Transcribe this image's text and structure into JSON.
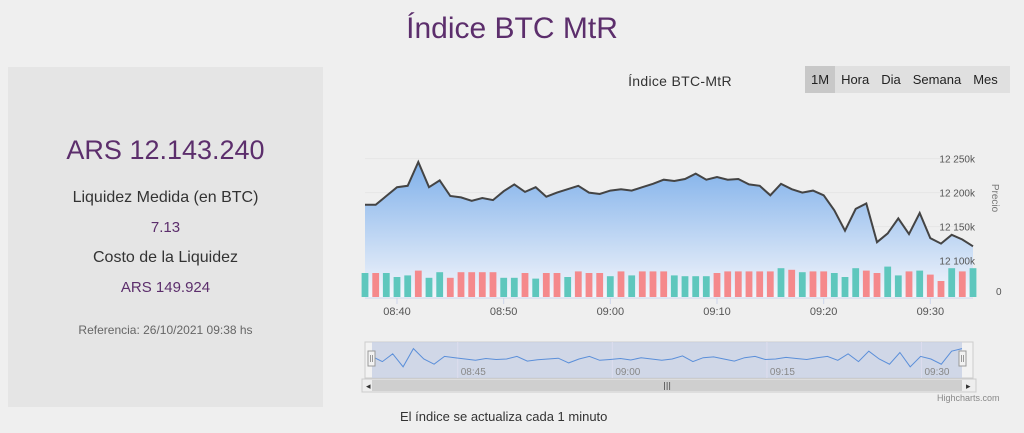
{
  "page": {
    "title": "Índice BTC MtR",
    "update_note": "El índice se actualiza cada 1 minuto",
    "credits": "Highcharts.com"
  },
  "summary": {
    "main_value": "ARS 12.143.240",
    "liquidity_label": "Liquidez Medida (en BTC)",
    "liquidity_value": "7.13",
    "cost_label": "Costo de la Liquidez",
    "cost_value": "ARS 149.924",
    "reference": "Referencia: 26/10/2021 09:38 hs"
  },
  "range_selector": {
    "buttons": [
      {
        "label": "1M",
        "active": true
      },
      {
        "label": "Hora",
        "active": false
      },
      {
        "label": "Dia",
        "active": false
      },
      {
        "label": "Semana",
        "active": false
      },
      {
        "label": "Mes",
        "active": false
      }
    ]
  },
  "colors": {
    "line": "#444444",
    "area_top": "#7fb0ea",
    "area_bottom": "#f4f6fb",
    "vol_up": "#5ec7bd",
    "vol_down": "#f5898c",
    "navigator_line": "#5b8fd9",
    "navigator_fill": "#c7cfe4",
    "title_accent": "#5c2e6c"
  },
  "chart_data": {
    "type": "line",
    "title": "Índice BTC-MtR",
    "x_ticks": [
      "08:40",
      "08:50",
      "09:00",
      "09:10",
      "09:20",
      "09:30"
    ],
    "x_tick_minutes": [
      520,
      530,
      540,
      550,
      560,
      570
    ],
    "x_range_minutes": [
      517,
      574
    ],
    "y_ticks": [
      "12 250k",
      "12 200k",
      "12 150k",
      "12 100k"
    ],
    "y_tick_values": [
      12250000,
      12200000,
      12150000,
      12100000
    ],
    "ylim": [
      12045000,
      12295000
    ],
    "ylabel": "Precio",
    "volume_axis_label": "0",
    "navigator_ticks": [
      "08:45",
      "09:00",
      "09:15",
      "09:30"
    ],
    "navigator_tick_minutes": [
      525,
      540,
      555,
      570
    ],
    "navigator_range_minutes": [
      516,
      575
    ],
    "series": [
      {
        "type": "area",
        "x_minutes": [
          517,
          518,
          519,
          520,
          521,
          522,
          523,
          524,
          525,
          526,
          527,
          528,
          529,
          530,
          531,
          532,
          533,
          534,
          535,
          536,
          537,
          538,
          539,
          540,
          541,
          542,
          543,
          544,
          545,
          546,
          547,
          548,
          549,
          550,
          551,
          552,
          553,
          554,
          555,
          556,
          557,
          558,
          559,
          560,
          561,
          562,
          563,
          564,
          565,
          566,
          567,
          568,
          569,
          570,
          571,
          572,
          573,
          574
        ],
        "values": [
          12182000,
          12182000,
          12195000,
          12208000,
          12210000,
          12245000,
          12208000,
          12218000,
          12195000,
          12193000,
          12188000,
          12192000,
          12189000,
          12202000,
          12212000,
          12201000,
          12208000,
          12194000,
          12200000,
          12205000,
          12210000,
          12200000,
          12198000,
          12203000,
          12205000,
          12203000,
          12208000,
          12213000,
          12219000,
          12217000,
          12220000,
          12228000,
          12219000,
          12223000,
          12219000,
          12220000,
          12212000,
          12210000,
          12196000,
          12213000,
          12205000,
          12200000,
          12203000,
          12196000,
          12174000,
          12144000,
          12176000,
          12184000,
          12127000,
          12140000,
          12162000,
          12139000,
          12170000,
          12133000,
          12125000,
          12138000,
          12131000,
          12121000
        ]
      },
      {
        "type": "volume",
        "values": [
          3,
          3,
          3,
          2.5,
          2.7,
          3.3,
          2.4,
          3.1,
          2.4,
          3.1,
          3.1,
          3.1,
          3.1,
          2.4,
          2.4,
          3.0,
          2.3,
          3.0,
          3.0,
          2.5,
          3.2,
          3.0,
          3.0,
          2.6,
          3.2,
          2.7,
          3.2,
          3.2,
          3.2,
          2.7,
          2.6,
          2.6,
          2.6,
          3.0,
          3.2,
          3.2,
          3.2,
          3.2,
          3.2,
          3.6,
          3.4,
          3.1,
          3.2,
          3.2,
          3.0,
          2.5,
          3.6,
          3.3,
          3.0,
          3.8,
          2.7,
          3.2,
          3.3,
          2.8,
          2.0,
          3.6,
          3.2,
          3.6
        ],
        "up": [
          1,
          0,
          1,
          1,
          1,
          0,
          1,
          1,
          0,
          0,
          0,
          0,
          0,
          1,
          1,
          0,
          1,
          0,
          0,
          1,
          0,
          0,
          0,
          1,
          0,
          1,
          0,
          0,
          0,
          1,
          1,
          1,
          1,
          0,
          0,
          0,
          0,
          0,
          0,
          1,
          0,
          1,
          0,
          0,
          1,
          1,
          1,
          0,
          0,
          1,
          1,
          0,
          1,
          0,
          0,
          1,
          0,
          1
        ]
      },
      {
        "type": "navigator",
        "values": [
          0.6,
          0.4,
          0.7,
          0.2,
          0.9,
          0.5,
          0.3,
          0.6,
          0.55,
          0.5,
          0.45,
          0.52,
          0.48,
          0.5,
          0.6,
          0.42,
          0.47,
          0.5,
          0.53,
          0.35,
          0.5,
          0.6,
          0.45,
          0.48,
          0.52,
          0.46,
          0.55,
          0.5,
          0.45,
          0.5,
          0.62,
          0.4,
          0.55,
          0.58,
          0.5,
          0.42,
          0.55,
          0.6,
          0.48,
          0.5,
          0.56,
          0.52,
          0.48,
          0.55,
          0.6,
          0.45,
          0.7,
          0.4,
          0.8,
          0.5,
          0.3,
          0.75,
          0.2,
          0.6,
          0.5,
          0.3,
          0.8,
          0.9
        ]
      }
    ]
  }
}
